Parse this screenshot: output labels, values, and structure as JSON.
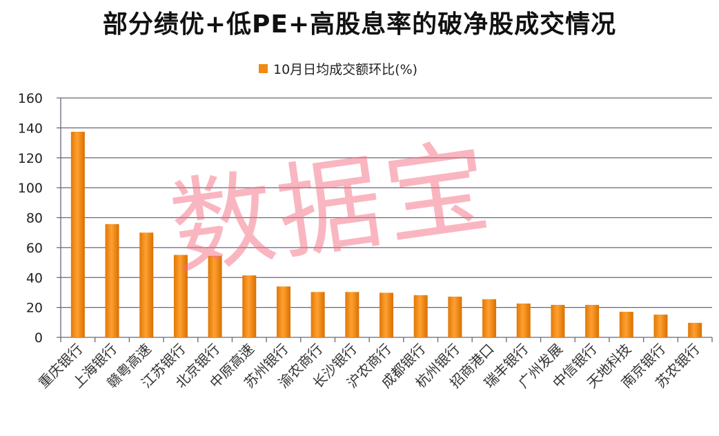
{
  "chart_data": {
    "type": "bar",
    "title": "部分绩优+低PE+高股息率的破净股成交情况",
    "legend": [
      "10月日均成交额环比(%)"
    ],
    "legend_position": "top",
    "categories": [
      "重庆银行",
      "上海银行",
      "赣粤高速",
      "江苏银行",
      "北京银行",
      "中原高速",
      "苏州银行",
      "渝农商行",
      "长沙银行",
      "沪农商行",
      "成都银行",
      "杭州银行",
      "招商港口",
      "瑞丰银行",
      "广州发展",
      "中信银行",
      "天地科技",
      "南京银行",
      "苏农银行"
    ],
    "series": [
      {
        "name": "10月日均成交额环比(%)",
        "values": [
          137.4,
          75.7,
          70.0,
          55.1,
          54.5,
          41.4,
          34.0,
          30.3,
          30.3,
          29.8,
          28.2,
          27.2,
          25.5,
          22.6,
          21.7,
          21.7,
          17.1,
          15.2,
          9.7
        ]
      }
    ],
    "ylim": [
      0,
      160
    ],
    "yticks": [
      0,
      20,
      40,
      60,
      80,
      100,
      120,
      140,
      160
    ],
    "grid": true,
    "xlabel": "",
    "ylabel": "",
    "bar_color": "#f08a10"
  },
  "watermark": "数据宝"
}
